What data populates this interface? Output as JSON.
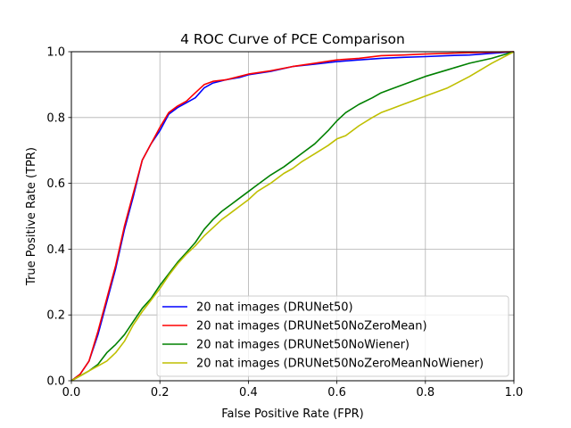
{
  "chart_data": {
    "type": "line",
    "title": "4 ROC Curve of PCE Comparison",
    "xlabel": "False Positive Rate (FPR)",
    "ylabel": "True Positive Rate (TPR)",
    "xlim": [
      0.0,
      1.0
    ],
    "ylim": [
      0.0,
      1.0
    ],
    "xticks": [
      "0.0",
      "0.2",
      "0.4",
      "0.6",
      "0.8",
      "1.0"
    ],
    "yticks": [
      "0.0",
      "0.2",
      "0.4",
      "0.6",
      "0.8",
      "1.0"
    ],
    "grid": true,
    "legend_position": "lower-right",
    "series": [
      {
        "name": "20 nat images (DRUNet50)",
        "color": "#0000ff",
        "x": [
          0.0,
          0.02,
          0.04,
          0.06,
          0.08,
          0.1,
          0.12,
          0.14,
          0.16,
          0.18,
          0.2,
          0.22,
          0.24,
          0.26,
          0.28,
          0.3,
          0.32,
          0.35,
          0.38,
          0.4,
          0.45,
          0.5,
          0.55,
          0.6,
          0.65,
          0.7,
          0.75,
          0.8,
          0.85,
          0.9,
          0.95,
          1.0
        ],
        "y": [
          0.0,
          0.02,
          0.06,
          0.14,
          0.24,
          0.34,
          0.46,
          0.56,
          0.67,
          0.72,
          0.76,
          0.81,
          0.83,
          0.845,
          0.86,
          0.89,
          0.905,
          0.915,
          0.922,
          0.93,
          0.94,
          0.955,
          0.962,
          0.97,
          0.975,
          0.98,
          0.983,
          0.985,
          0.988,
          0.99,
          0.995,
          1.0
        ]
      },
      {
        "name": "20 nat images (DRUNet50NoZeroMean)",
        "color": "#ff0000",
        "x": [
          0.0,
          0.02,
          0.04,
          0.06,
          0.08,
          0.1,
          0.12,
          0.14,
          0.16,
          0.18,
          0.2,
          0.22,
          0.24,
          0.26,
          0.28,
          0.3,
          0.32,
          0.35,
          0.38,
          0.4,
          0.45,
          0.5,
          0.55,
          0.6,
          0.65,
          0.7,
          0.75,
          0.8,
          0.85,
          0.9,
          0.95,
          1.0
        ],
        "y": [
          0.0,
          0.02,
          0.06,
          0.15,
          0.25,
          0.35,
          0.47,
          0.57,
          0.67,
          0.72,
          0.77,
          0.815,
          0.835,
          0.85,
          0.875,
          0.9,
          0.91,
          0.915,
          0.925,
          0.932,
          0.942,
          0.955,
          0.965,
          0.975,
          0.98,
          0.988,
          0.99,
          0.993,
          0.995,
          0.997,
          0.999,
          1.0
        ]
      },
      {
        "name": "20 nat images (DRUNet50NoWiener)",
        "color": "#008000",
        "x": [
          0.0,
          0.02,
          0.04,
          0.06,
          0.08,
          0.1,
          0.12,
          0.14,
          0.16,
          0.18,
          0.2,
          0.22,
          0.24,
          0.26,
          0.28,
          0.3,
          0.32,
          0.34,
          0.36,
          0.38,
          0.4,
          0.42,
          0.45,
          0.48,
          0.5,
          0.52,
          0.55,
          0.58,
          0.6,
          0.62,
          0.65,
          0.68,
          0.7,
          0.72,
          0.75,
          0.78,
          0.8,
          0.85,
          0.9,
          0.95,
          1.0
        ],
        "y": [
          0.0,
          0.015,
          0.03,
          0.05,
          0.085,
          0.11,
          0.14,
          0.18,
          0.22,
          0.25,
          0.29,
          0.325,
          0.36,
          0.39,
          0.42,
          0.46,
          0.49,
          0.515,
          0.535,
          0.555,
          0.575,
          0.595,
          0.625,
          0.65,
          0.67,
          0.69,
          0.72,
          0.76,
          0.79,
          0.815,
          0.84,
          0.86,
          0.875,
          0.885,
          0.9,
          0.915,
          0.925,
          0.945,
          0.965,
          0.98,
          1.0
        ]
      },
      {
        "name": "20 nat images (DRUNet50NoZeroMeanNoWiener)",
        "color": "#bfbf00",
        "x": [
          0.0,
          0.02,
          0.04,
          0.06,
          0.08,
          0.1,
          0.12,
          0.14,
          0.16,
          0.18,
          0.2,
          0.22,
          0.24,
          0.26,
          0.28,
          0.3,
          0.32,
          0.34,
          0.36,
          0.38,
          0.4,
          0.42,
          0.45,
          0.48,
          0.5,
          0.52,
          0.55,
          0.58,
          0.6,
          0.62,
          0.65,
          0.68,
          0.7,
          0.72,
          0.75,
          0.78,
          0.8,
          0.85,
          0.9,
          0.95,
          1.0
        ],
        "y": [
          0.0,
          0.015,
          0.03,
          0.045,
          0.06,
          0.085,
          0.12,
          0.17,
          0.21,
          0.245,
          0.28,
          0.32,
          0.355,
          0.385,
          0.41,
          0.44,
          0.465,
          0.49,
          0.51,
          0.53,
          0.55,
          0.575,
          0.6,
          0.63,
          0.645,
          0.665,
          0.69,
          0.715,
          0.735,
          0.745,
          0.775,
          0.8,
          0.815,
          0.825,
          0.84,
          0.855,
          0.865,
          0.89,
          0.925,
          0.965,
          1.0
        ]
      }
    ]
  }
}
